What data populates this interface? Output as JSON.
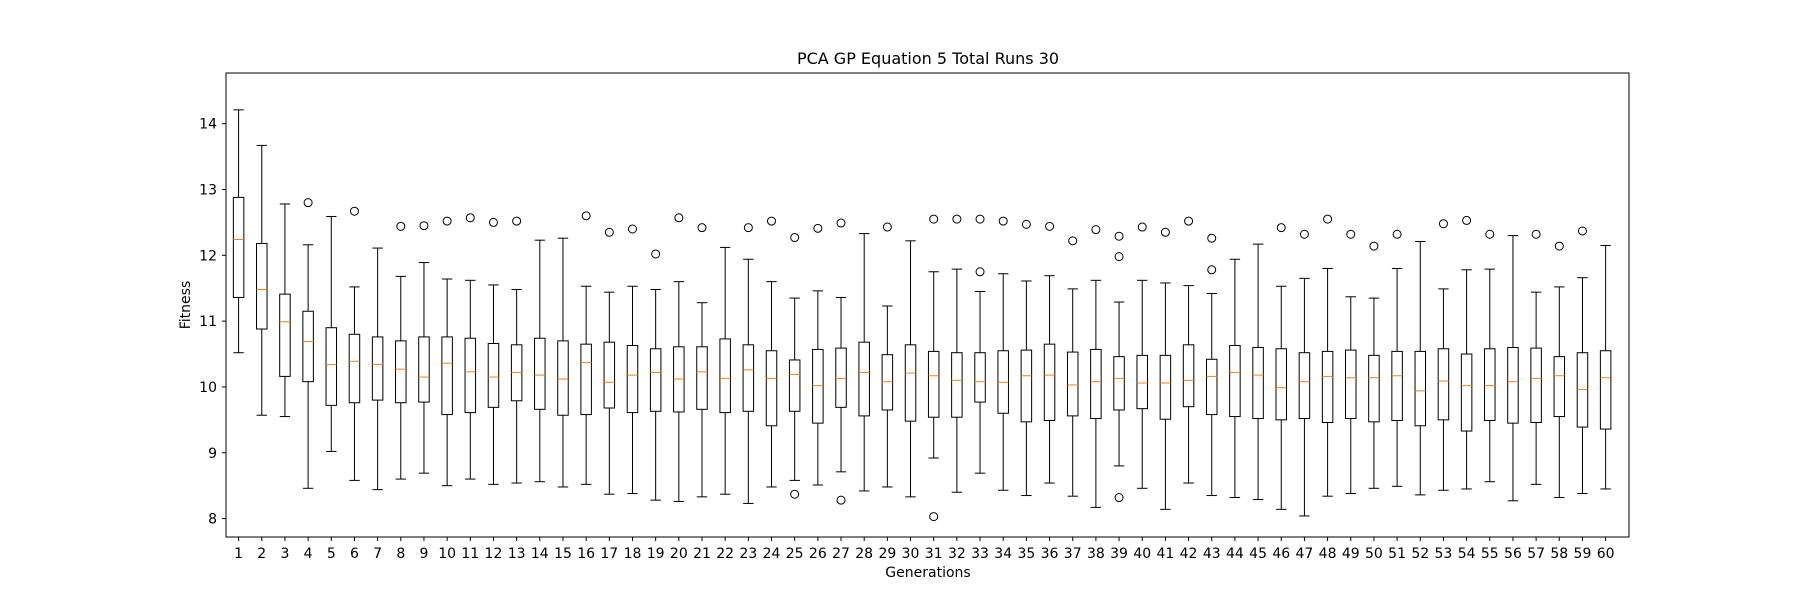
{
  "chart_data": {
    "type": "boxplot",
    "title": "PCA GP Equation 5 Total Runs 30",
    "xlabel": "Generations",
    "ylabel": "Fitness",
    "ylim": [
      7.72,
      14.77
    ],
    "yticks": [
      8,
      9,
      10,
      11,
      12,
      13,
      14
    ],
    "grid": false,
    "colors": {
      "box": "#000000",
      "median": "#ff7f0e",
      "flier": "#000000"
    },
    "categories": [
      "1",
      "2",
      "3",
      "4",
      "5",
      "6",
      "7",
      "8",
      "9",
      "10",
      "11",
      "12",
      "13",
      "14",
      "15",
      "16",
      "17",
      "18",
      "19",
      "20",
      "21",
      "22",
      "23",
      "24",
      "25",
      "26",
      "27",
      "28",
      "29",
      "30",
      "31",
      "32",
      "33",
      "34",
      "35",
      "36",
      "37",
      "38",
      "39",
      "40",
      "41",
      "42",
      "43",
      "44",
      "45",
      "46",
      "47",
      "48",
      "49",
      "50",
      "51",
      "52",
      "53",
      "54",
      "55",
      "56",
      "57",
      "58",
      "59",
      "60"
    ],
    "boxes": [
      {
        "min": 10.52,
        "q1": 11.36,
        "median": 12.24,
        "q3": 12.88,
        "max": 14.21,
        "fliers": []
      },
      {
        "min": 9.57,
        "q1": 10.88,
        "median": 11.48,
        "q3": 12.18,
        "max": 13.67,
        "fliers": []
      },
      {
        "min": 9.55,
        "q1": 10.16,
        "median": 10.99,
        "q3": 11.41,
        "max": 12.78,
        "fliers": []
      },
      {
        "min": 8.46,
        "q1": 10.08,
        "median": 10.69,
        "q3": 11.15,
        "max": 12.16,
        "fliers": [
          12.8
        ]
      },
      {
        "min": 9.02,
        "q1": 9.72,
        "median": 10.34,
        "q3": 10.9,
        "max": 12.59,
        "fliers": []
      },
      {
        "min": 8.58,
        "q1": 9.76,
        "median": 10.39,
        "q3": 10.8,
        "max": 11.52,
        "fliers": [
          12.67
        ]
      },
      {
        "min": 8.44,
        "q1": 9.8,
        "median": 10.34,
        "q3": 10.76,
        "max": 12.11,
        "fliers": []
      },
      {
        "min": 8.6,
        "q1": 9.76,
        "median": 10.27,
        "q3": 10.7,
        "max": 11.68,
        "fliers": [
          12.44
        ]
      },
      {
        "min": 8.69,
        "q1": 9.77,
        "median": 10.15,
        "q3": 10.76,
        "max": 11.89,
        "fliers": [
          12.45
        ]
      },
      {
        "min": 8.5,
        "q1": 9.58,
        "median": 10.36,
        "q3": 10.76,
        "max": 11.64,
        "fliers": [
          12.52
        ]
      },
      {
        "min": 8.6,
        "q1": 9.61,
        "median": 10.23,
        "q3": 10.74,
        "max": 11.62,
        "fliers": [
          12.57
        ]
      },
      {
        "min": 8.52,
        "q1": 9.69,
        "median": 10.15,
        "q3": 10.66,
        "max": 11.55,
        "fliers": [
          12.5
        ]
      },
      {
        "min": 8.54,
        "q1": 9.79,
        "median": 10.22,
        "q3": 10.64,
        "max": 11.48,
        "fliers": [
          12.52
        ]
      },
      {
        "min": 8.56,
        "q1": 9.66,
        "median": 10.18,
        "q3": 10.74,
        "max": 12.23,
        "fliers": []
      },
      {
        "min": 8.48,
        "q1": 9.57,
        "median": 10.12,
        "q3": 10.7,
        "max": 12.26,
        "fliers": []
      },
      {
        "min": 8.52,
        "q1": 9.58,
        "median": 10.37,
        "q3": 10.65,
        "max": 11.53,
        "fliers": [
          12.6
        ]
      },
      {
        "min": 8.37,
        "q1": 9.68,
        "median": 10.07,
        "q3": 10.68,
        "max": 11.44,
        "fliers": [
          12.35
        ]
      },
      {
        "min": 8.38,
        "q1": 9.61,
        "median": 10.18,
        "q3": 10.63,
        "max": 11.53,
        "fliers": [
          12.4
        ]
      },
      {
        "min": 8.28,
        "q1": 9.63,
        "median": 10.22,
        "q3": 10.58,
        "max": 11.48,
        "fliers": [
          12.02
        ]
      },
      {
        "min": 8.26,
        "q1": 9.62,
        "median": 10.12,
        "q3": 10.61,
        "max": 11.6,
        "fliers": [
          12.57
        ]
      },
      {
        "min": 8.33,
        "q1": 9.66,
        "median": 10.23,
        "q3": 10.61,
        "max": 11.28,
        "fliers": [
          12.42
        ]
      },
      {
        "min": 8.37,
        "q1": 9.61,
        "median": 10.13,
        "q3": 10.73,
        "max": 12.12,
        "fliers": []
      },
      {
        "min": 8.23,
        "q1": 9.63,
        "median": 10.26,
        "q3": 10.64,
        "max": 11.94,
        "fliers": [
          12.42
        ]
      },
      {
        "min": 8.48,
        "q1": 9.41,
        "median": 10.13,
        "q3": 10.55,
        "max": 11.6,
        "fliers": [
          12.52
        ]
      },
      {
        "min": 8.58,
        "q1": 9.63,
        "median": 10.19,
        "q3": 10.41,
        "max": 11.35,
        "fliers": [
          8.37,
          12.27
        ]
      },
      {
        "min": 8.51,
        "q1": 9.45,
        "median": 10.02,
        "q3": 10.57,
        "max": 11.46,
        "fliers": [
          12.41
        ]
      },
      {
        "min": 8.71,
        "q1": 9.69,
        "median": 10.13,
        "q3": 10.59,
        "max": 11.36,
        "fliers": [
          8.28,
          12.49
        ]
      },
      {
        "min": 8.42,
        "q1": 9.56,
        "median": 10.22,
        "q3": 10.68,
        "max": 12.33,
        "fliers": []
      },
      {
        "min": 8.48,
        "q1": 9.65,
        "median": 10.08,
        "q3": 10.49,
        "max": 11.23,
        "fliers": [
          12.43
        ]
      },
      {
        "min": 8.33,
        "q1": 9.48,
        "median": 10.21,
        "q3": 10.64,
        "max": 12.22,
        "fliers": []
      },
      {
        "min": 8.92,
        "q1": 9.54,
        "median": 10.17,
        "q3": 10.54,
        "max": 11.75,
        "fliers": [
          8.03,
          12.55
        ]
      },
      {
        "min": 8.4,
        "q1": 9.54,
        "median": 10.1,
        "q3": 10.52,
        "max": 11.79,
        "fliers": [
          12.55
        ]
      },
      {
        "min": 8.69,
        "q1": 9.77,
        "median": 10.08,
        "q3": 10.52,
        "max": 11.45,
        "fliers": [
          11.75,
          12.55
        ]
      },
      {
        "min": 8.43,
        "q1": 9.6,
        "median": 10.07,
        "q3": 10.55,
        "max": 11.72,
        "fliers": [
          12.52
        ]
      },
      {
        "min": 8.35,
        "q1": 9.47,
        "median": 10.17,
        "q3": 10.56,
        "max": 11.61,
        "fliers": [
          12.47
        ]
      },
      {
        "min": 8.54,
        "q1": 9.49,
        "median": 10.18,
        "q3": 10.65,
        "max": 11.69,
        "fliers": [
          12.44
        ]
      },
      {
        "min": 8.34,
        "q1": 9.56,
        "median": 10.03,
        "q3": 10.53,
        "max": 11.49,
        "fliers": [
          12.22
        ]
      },
      {
        "min": 8.17,
        "q1": 9.52,
        "median": 10.08,
        "q3": 10.57,
        "max": 11.62,
        "fliers": [
          12.39
        ]
      },
      {
        "min": 8.8,
        "q1": 9.65,
        "median": 10.13,
        "q3": 10.46,
        "max": 11.29,
        "fliers": [
          8.32,
          11.98,
          12.29
        ]
      },
      {
        "min": 8.46,
        "q1": 9.67,
        "median": 10.06,
        "q3": 10.48,
        "max": 11.62,
        "fliers": [
          12.43
        ]
      },
      {
        "min": 8.14,
        "q1": 9.51,
        "median": 10.06,
        "q3": 10.48,
        "max": 11.58,
        "fliers": [
          12.35
        ]
      },
      {
        "min": 8.54,
        "q1": 9.7,
        "median": 10.1,
        "q3": 10.64,
        "max": 11.54,
        "fliers": [
          12.52
        ]
      },
      {
        "min": 8.35,
        "q1": 9.58,
        "median": 10.16,
        "q3": 10.42,
        "max": 11.42,
        "fliers": [
          11.78,
          12.26
        ]
      },
      {
        "min": 8.32,
        "q1": 9.55,
        "median": 10.22,
        "q3": 10.63,
        "max": 11.94,
        "fliers": []
      },
      {
        "min": 8.29,
        "q1": 9.52,
        "median": 10.18,
        "q3": 10.6,
        "max": 12.17,
        "fliers": []
      },
      {
        "min": 8.14,
        "q1": 9.5,
        "median": 9.99,
        "q3": 10.58,
        "max": 11.53,
        "fliers": [
          12.42
        ]
      },
      {
        "min": 8.04,
        "q1": 9.52,
        "median": 10.08,
        "q3": 10.52,
        "max": 11.65,
        "fliers": [
          12.32
        ]
      },
      {
        "min": 8.34,
        "q1": 9.46,
        "median": 10.16,
        "q3": 10.54,
        "max": 11.8,
        "fliers": [
          12.55
        ]
      },
      {
        "min": 8.38,
        "q1": 9.52,
        "median": 10.14,
        "q3": 10.56,
        "max": 11.37,
        "fliers": [
          12.32
        ]
      },
      {
        "min": 8.46,
        "q1": 9.47,
        "median": 10.14,
        "q3": 10.48,
        "max": 11.35,
        "fliers": [
          12.14
        ]
      },
      {
        "min": 8.49,
        "q1": 9.49,
        "median": 10.17,
        "q3": 10.54,
        "max": 11.8,
        "fliers": [
          12.32
        ]
      },
      {
        "min": 8.36,
        "q1": 9.41,
        "median": 9.94,
        "q3": 10.54,
        "max": 12.21,
        "fliers": []
      },
      {
        "min": 8.43,
        "q1": 9.5,
        "median": 10.09,
        "q3": 10.58,
        "max": 11.49,
        "fliers": [
          12.48
        ]
      },
      {
        "min": 8.45,
        "q1": 9.33,
        "median": 10.02,
        "q3": 10.5,
        "max": 11.78,
        "fliers": [
          12.53
        ]
      },
      {
        "min": 8.56,
        "q1": 9.49,
        "median": 10.02,
        "q3": 10.58,
        "max": 11.79,
        "fliers": [
          12.32
        ]
      },
      {
        "min": 8.27,
        "q1": 9.45,
        "median": 10.08,
        "q3": 10.6,
        "max": 12.3,
        "fliers": []
      },
      {
        "min": 8.52,
        "q1": 9.46,
        "median": 10.13,
        "q3": 10.59,
        "max": 11.44,
        "fliers": [
          12.32
        ]
      },
      {
        "min": 8.32,
        "q1": 9.55,
        "median": 10.17,
        "q3": 10.46,
        "max": 11.52,
        "fliers": [
          12.14
        ]
      },
      {
        "min": 8.38,
        "q1": 9.39,
        "median": 9.96,
        "q3": 10.52,
        "max": 11.66,
        "fliers": [
          12.37
        ]
      },
      {
        "min": 8.45,
        "q1": 9.36,
        "median": 10.14,
        "q3": 10.55,
        "max": 12.15,
        "fliers": []
      }
    ]
  }
}
